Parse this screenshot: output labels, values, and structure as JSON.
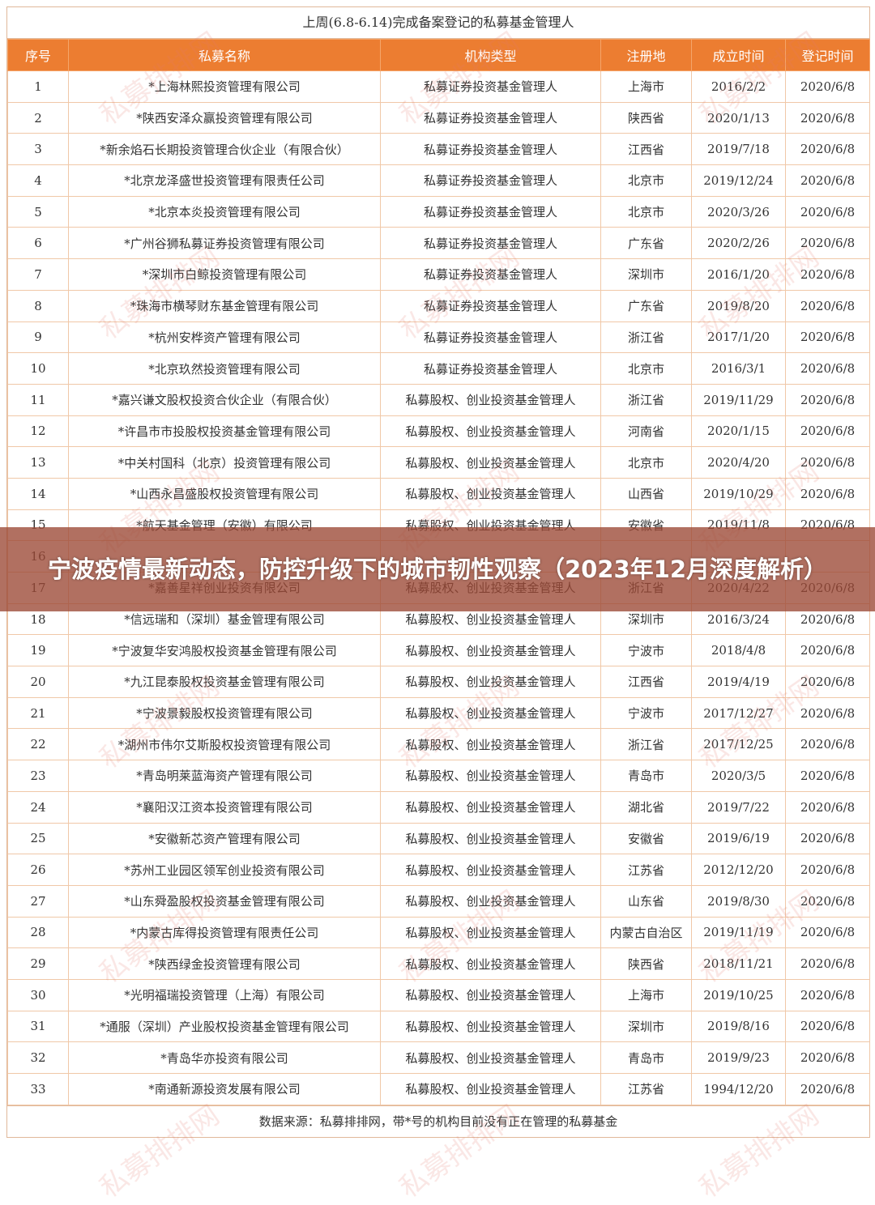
{
  "table": {
    "title": "上周(6.8-6.14)完成备案登记的私募基金管理人",
    "header_color": "#ec7d31",
    "columns": [
      "序号",
      "私募名称",
      "机构类型",
      "注册地",
      "成立时间",
      "登记时间"
    ],
    "rows": [
      [
        "1",
        "*上海林熙投资管理有限公司",
        "私募证券投资基金管理人",
        "上海市",
        "2016/2/2",
        "2020/6/8"
      ],
      [
        "2",
        "*陕西安泽众赢投资管理有限公司",
        "私募证券投资基金管理人",
        "陕西省",
        "2020/1/13",
        "2020/6/8"
      ],
      [
        "3",
        "*新余焰石长期投资管理合伙企业（有限合伙）",
        "私募证券投资基金管理人",
        "江西省",
        "2019/7/18",
        "2020/6/8"
      ],
      [
        "4",
        "*北京龙泽盛世投资管理有限责任公司",
        "私募证券投资基金管理人",
        "北京市",
        "2019/12/24",
        "2020/6/8"
      ],
      [
        "5",
        "*北京本炎投资管理有限公司",
        "私募证券投资基金管理人",
        "北京市",
        "2020/3/26",
        "2020/6/8"
      ],
      [
        "6",
        "*广州谷狮私募证券投资管理有限公司",
        "私募证券投资基金管理人",
        "广东省",
        "2020/2/26",
        "2020/6/8"
      ],
      [
        "7",
        "*深圳市白鲸投资管理有限公司",
        "私募证券投资基金管理人",
        "深圳市",
        "2016/1/20",
        "2020/6/8"
      ],
      [
        "8",
        "*珠海市横琴财东基金管理有限公司",
        "私募证券投资基金管理人",
        "广东省",
        "2019/8/20",
        "2020/6/8"
      ],
      [
        "9",
        "*杭州安桦资产管理有限公司",
        "私募证券投资基金管理人",
        "浙江省",
        "2017/1/20",
        "2020/6/8"
      ],
      [
        "10",
        "*北京玖然投资管理有限公司",
        "私募证券投资基金管理人",
        "北京市",
        "2016/3/1",
        "2020/6/8"
      ],
      [
        "11",
        "*嘉兴谦文股权投资合伙企业（有限合伙）",
        "私募股权、创业投资基金管理人",
        "浙江省",
        "2019/11/29",
        "2020/6/8"
      ],
      [
        "12",
        "*许昌市市投股权投资基金管理有限公司",
        "私募股权、创业投资基金管理人",
        "河南省",
        "2020/1/15",
        "2020/6/8"
      ],
      [
        "13",
        "*中关村国科（北京）投资管理有限公司",
        "私募股权、创业投资基金管理人",
        "北京市",
        "2020/4/20",
        "2020/6/8"
      ],
      [
        "14",
        "*山西永昌盛股权投资管理有限公司",
        "私募股权、创业投资基金管理人",
        "山西省",
        "2019/10/29",
        "2020/6/8"
      ],
      [
        "15",
        "*航天基金管理（安徽）有限公司",
        "私募股权、创业投资基金管理人",
        "安徽省",
        "2019/11/8",
        "2020/6/8"
      ],
      [
        "16",
        "",
        "",
        "",
        "",
        ""
      ],
      [
        "17",
        "*嘉善星祥创业投资有限公司",
        "私募股权、创业投资基金管理人",
        "浙江省",
        "2020/4/22",
        "2020/6/8"
      ],
      [
        "18",
        "*信远瑞和（深圳）基金管理有限公司",
        "私募股权、创业投资基金管理人",
        "深圳市",
        "2016/3/24",
        "2020/6/8"
      ],
      [
        "19",
        "*宁波复华安鸿股权投资基金管理有限公司",
        "私募股权、创业投资基金管理人",
        "宁波市",
        "2018/4/8",
        "2020/6/8"
      ],
      [
        "20",
        "*九江昆泰股权投资基金管理有限公司",
        "私募股权、创业投资基金管理人",
        "江西省",
        "2019/4/19",
        "2020/6/8"
      ],
      [
        "21",
        "*宁波景毅股权投资管理有限公司",
        "私募股权、创业投资基金管理人",
        "宁波市",
        "2017/12/27",
        "2020/6/8"
      ],
      [
        "22",
        "*湖州市伟尔艾斯股权投资管理有限公司",
        "私募股权、创业投资基金管理人",
        "浙江省",
        "2017/12/25",
        "2020/6/8"
      ],
      [
        "23",
        "*青岛明莱蓝海资产管理有限公司",
        "私募股权、创业投资基金管理人",
        "青岛市",
        "2020/3/5",
        "2020/6/8"
      ],
      [
        "24",
        "*襄阳汉江资本投资管理有限公司",
        "私募股权、创业投资基金管理人",
        "湖北省",
        "2019/7/22",
        "2020/6/8"
      ],
      [
        "25",
        "*安徽新芯资产管理有限公司",
        "私募股权、创业投资基金管理人",
        "安徽省",
        "2019/6/19",
        "2020/6/8"
      ],
      [
        "26",
        "*苏州工业园区领军创业投资有限公司",
        "私募股权、创业投资基金管理人",
        "江苏省",
        "2012/12/20",
        "2020/6/8"
      ],
      [
        "27",
        "*山东舜盈股权投资基金管理有限公司",
        "私募股权、创业投资基金管理人",
        "山东省",
        "2019/8/30",
        "2020/6/8"
      ],
      [
        "28",
        "*内蒙古库得投资管理有限责任公司",
        "私募股权、创业投资基金管理人",
        "内蒙古自治区",
        "2019/11/19",
        "2020/6/8"
      ],
      [
        "29",
        "*陕西绿金投资管理有限公司",
        "私募股权、创业投资基金管理人",
        "陕西省",
        "2018/11/21",
        "2020/6/8"
      ],
      [
        "30",
        "*光明福瑞投资管理（上海）有限公司",
        "私募股权、创业投资基金管理人",
        "上海市",
        "2019/10/25",
        "2020/6/8"
      ],
      [
        "31",
        "*通服（深圳）产业股权投资基金管理有限公司",
        "私募股权、创业投资基金管理人",
        "深圳市",
        "2019/8/16",
        "2020/6/8"
      ],
      [
        "32",
        "*青岛华亦投资有限公司",
        "私募股权、创业投资基金管理人",
        "青岛市",
        "2019/9/23",
        "2020/6/8"
      ],
      [
        "33",
        "*南通新源投资发展有限公司",
        "私募股权、创业投资基金管理人",
        "江苏省",
        "1994/12/20",
        "2020/6/8"
      ]
    ],
    "footer": "数据来源：私募排排网，带*号的机构目前没有正在管理的私募基金"
  },
  "watermark": "私募排排网",
  "overlay": {
    "headline": "宁波疫情最新动态，防控升级下的城市韧性观察（2023年12月深度解析）",
    "color": "#9b4834"
  }
}
